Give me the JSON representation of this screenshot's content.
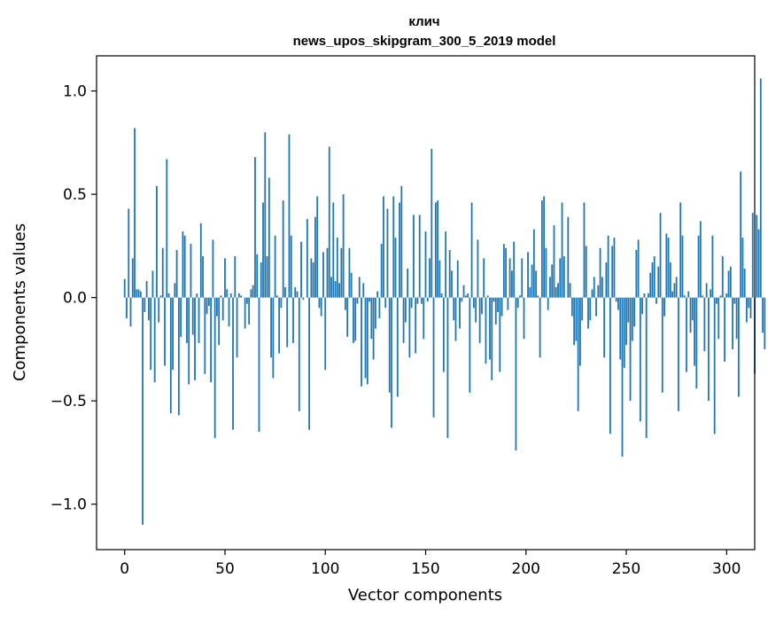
{
  "chart_data": {
    "type": "bar",
    "title": "клич",
    "subtitle": "news_upos_skipgram_300_5_2019 model",
    "xlabel": "Vector components",
    "ylabel": "Components values",
    "xlim": [
      -14,
      314
    ],
    "ylim": [
      -1.22,
      1.17
    ],
    "xticks": [
      0,
      50,
      100,
      150,
      200,
      250,
      300
    ],
    "xtick_labels": [
      "0",
      "50",
      "100",
      "150",
      "200",
      "250",
      "300"
    ],
    "yticks": [
      -1.0,
      -0.5,
      0.0,
      0.5,
      1.0
    ],
    "ytick_labels": [
      "−1.0",
      "−0.5",
      "0.0",
      "0.5",
      "1.0"
    ],
    "grid": false,
    "bar_color": "#1f77b4",
    "values": [
      0.09,
      -0.1,
      0.43,
      -0.14,
      0.19,
      0.82,
      0.04,
      0.04,
      0.03,
      -1.1,
      -0.07,
      0.08,
      -0.11,
      -0.35,
      0.13,
      -0.41,
      0.54,
      -0.12,
      0.01,
      0.24,
      -0.33,
      0.67,
      0.02,
      -0.56,
      -0.35,
      0.07,
      0.23,
      -0.57,
      -0.19,
      0.32,
      0.3,
      -0.22,
      -0.42,
      0.26,
      -0.18,
      -0.4,
      0.02,
      -0.22,
      0.36,
      0.2,
      -0.37,
      -0.08,
      -0.04,
      -0.41,
      0.28,
      -0.68,
      -0.09,
      -0.23,
      0.01,
      -0.11,
      0.19,
      0.04,
      -0.14,
      0.02,
      -0.64,
      0.2,
      -0.29,
      0.02,
      0.01,
      0.0,
      -0.15,
      -0.03,
      -0.13,
      0.04,
      0.06,
      0.68,
      0.21,
      -0.65,
      0.17,
      0.46,
      0.8,
      0.2,
      0.58,
      -0.29,
      -0.39,
      0.3,
      0.01,
      -0.27,
      -0.05,
      0.47,
      0.05,
      -0.24,
      0.79,
      0.3,
      -0.22,
      0.05,
      0.03,
      -0.55,
      0.27,
      -0.01,
      0.0,
      0.38,
      -0.64,
      0.19,
      0.17,
      0.39,
      0.49,
      -0.05,
      -0.09,
      0.22,
      -0.35,
      0.24,
      0.73,
      0.1,
      0.46,
      0.08,
      0.29,
      0.07,
      0.24,
      0.5,
      -0.06,
      -0.19,
      0.24,
      0.12,
      -0.22,
      -0.21,
      -0.03,
      0.1,
      -0.43,
      0.07,
      -0.39,
      -0.42,
      -0.02,
      -0.2,
      -0.3,
      -0.15,
      0.03,
      -0.1,
      0.26,
      0.49,
      -0.05,
      0.43,
      -0.46,
      -0.63,
      0.49,
      0.29,
      -0.48,
      0.46,
      0.54,
      -0.22,
      -0.12,
      0.14,
      -0.29,
      -0.05,
      0.4,
      -0.27,
      -0.03,
      0.4,
      -0.03,
      -0.2,
      0.32,
      -0.02,
      0.19,
      0.72,
      -0.58,
      0.46,
      0.47,
      0.18,
      0.02,
      -0.36,
      0.32,
      -0.68,
      0.23,
      0.13,
      -0.11,
      -0.21,
      0.18,
      -0.15,
      -0.02,
      0.06,
      0.01,
      0.02,
      -0.46,
      0.46,
      -0.05,
      -0.12,
      0.28,
      -0.22,
      -0.08,
      0.19,
      -0.32,
      0.01,
      -0.3,
      -0.4,
      -0.02,
      -0.13,
      -0.07,
      -0.36,
      -0.09,
      0.26,
      0.24,
      -0.06,
      0.19,
      0.13,
      0.27,
      -0.74,
      -0.05,
      0.01,
      0.19,
      -0.2,
      0.0,
      0.22,
      0.05,
      0.16,
      0.33,
      0.13,
      0.01,
      -0.29,
      0.47,
      0.49,
      0.24,
      -0.06,
      0.1,
      0.16,
      0.35,
      0.05,
      0.07,
      0.19,
      0.46,
      0.2,
      0.0,
      0.39,
      0.07,
      -0.09,
      -0.23,
      -0.21,
      -0.55,
      -0.33,
      -0.11,
      0.46,
      0.25,
      -0.15,
      -0.11,
      0.04,
      0.1,
      -0.09,
      0.06,
      0.24,
      0.1,
      -0.29,
      0.17,
      0.3,
      -0.66,
      0.25,
      0.29,
      -0.02,
      -0.06,
      -0.3,
      -0.77,
      -0.34,
      -0.23,
      -0.12,
      -0.5,
      -0.21,
      -0.14,
      0.23,
      0.28,
      -0.6,
      -0.08,
      0.02,
      -0.68,
      0.02,
      0.12,
      0.17,
      0.2,
      -0.03,
      0.15,
      0.41,
      -0.46,
      -0.09,
      0.31,
      0.29,
      0.17,
      0.03,
      0.07,
      0.1,
      -0.55,
      0.46,
      0.3,
      0.01,
      -0.36,
      0.03,
      -0.17,
      -0.11,
      -0.33,
      -0.44,
      0.3,
      0.37,
      0.01,
      -0.26,
      0.07,
      -0.5,
      0.04,
      0.3,
      -0.66,
      -0.03,
      -0.2,
      0.01,
      0.2,
      -0.31,
      0.02,
      0.13,
      0.15,
      -0.25,
      -0.03,
      -0.2,
      -0.48,
      0.61,
      0.29,
      0.14,
      -0.12,
      -0.05,
      -0.1,
      0.41,
      -0.37,
      0.4,
      0.33,
      1.06,
      -0.17,
      -0.25
    ]
  }
}
